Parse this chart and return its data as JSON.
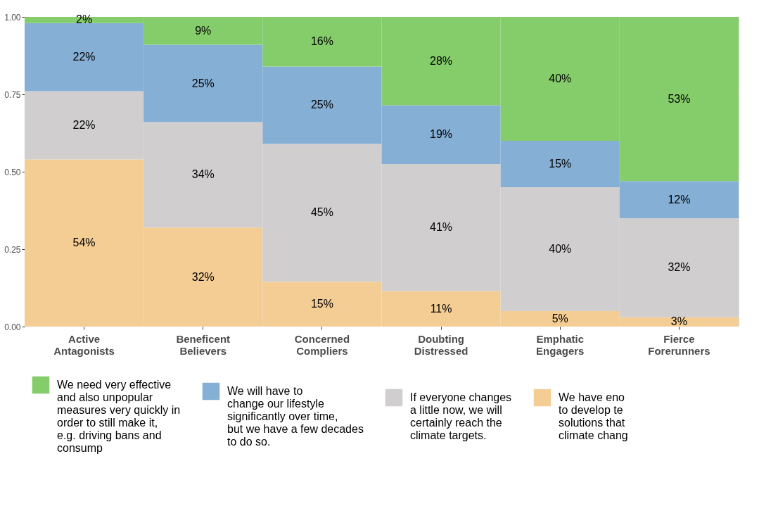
{
  "chart_data": {
    "type": "bar",
    "stacked": true,
    "categories": [
      "Active Antagonists",
      "Beneficent Believers",
      "Concerned Compliers",
      "Doubting Distressed",
      "Emphatic Engagers",
      "Fierce Forerunners"
    ],
    "series": [
      {
        "name": "We have eno\nto develop te\nsolutions that\nclimate chang",
        "color": "#f3cd94",
        "values": [
          0.54,
          0.32,
          0.145,
          0.115,
          0.05,
          0.03
        ],
        "value_labels": [
          "54%",
          "32%",
          "15%",
          "11%",
          "5%",
          "3%"
        ]
      },
      {
        "name": "If everyone changes\na little now, we will\ncertainly reach the\nclimate targets.",
        "color": "#d0cecf",
        "values": [
          0.22,
          0.34,
          0.445,
          0.41,
          0.4,
          0.32
        ],
        "value_labels": [
          "22%",
          "34%",
          "45%",
          "41%",
          "40%",
          "32%"
        ]
      },
      {
        "name": "We will have to\nchange our lifestyle\nsignificantly over time,\nbut we have a few decades\nto do so.",
        "color": "#85afd4",
        "values": [
          0.22,
          0.25,
          0.25,
          0.19,
          0.15,
          0.12
        ],
        "value_labels": [
          "22%",
          "25%",
          "25%",
          "19%",
          "15%",
          "12%"
        ]
      },
      {
        "name": "We need very effective\nand also unpopular\nmeasures very quickly in\norder to still make it,\ne.g. driving bans and\nconsump",
        "color": "#85cc6a",
        "values": [
          0.02,
          0.09,
          0.16,
          0.285,
          0.4,
          0.53
        ],
        "value_labels": [
          "2%",
          "9%",
          "16%",
          "28%",
          "40%",
          "53%"
        ]
      }
    ],
    "ylim": [
      0,
      1
    ],
    "yticks": [
      {
        "value": 0,
        "label": "0.00"
      },
      {
        "value": 0.25,
        "label": "0.25"
      },
      {
        "value": 0.5,
        "label": "0.50"
      },
      {
        "value": 0.75,
        "label": "0.75"
      },
      {
        "value": 1,
        "label": "1.00"
      }
    ],
    "grid": "y",
    "legend": "bottom"
  }
}
